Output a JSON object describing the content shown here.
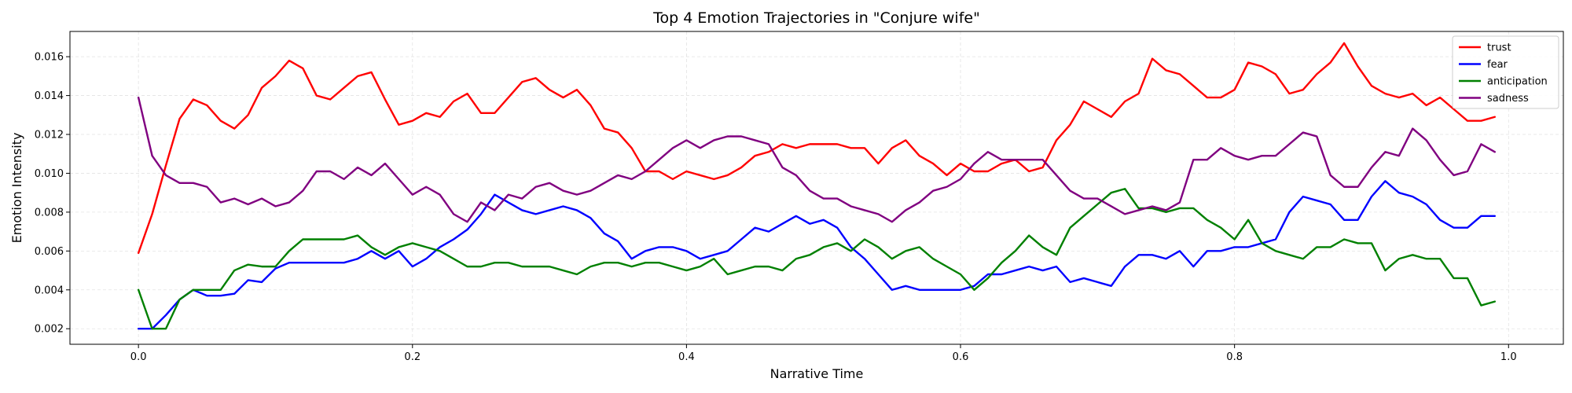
{
  "chart_data": {
    "type": "line",
    "title": "Top 4 Emotion Trajectories in \"Conjure wife\"",
    "xlabel": "Narrative Time",
    "ylabel": "Emotion Intensity",
    "xlim": [
      -0.05,
      1.04
    ],
    "ylim": [
      0.0012,
      0.0173
    ],
    "xticks": [
      0.0,
      0.2,
      0.4,
      0.6,
      0.8,
      1.0
    ],
    "xtick_labels": [
      "0.0",
      "0.2",
      "0.4",
      "0.6",
      "0.8",
      "1.0"
    ],
    "yticks": [
      0.002,
      0.004,
      0.006,
      0.008,
      0.01,
      0.012,
      0.014,
      0.016
    ],
    "ytick_labels": [
      "0.002",
      "0.004",
      "0.006",
      "0.008",
      "0.010",
      "0.012",
      "0.014",
      "0.016"
    ],
    "grid": true,
    "legend_position": "top-right",
    "x_start": 0.0,
    "x_step": 0.01,
    "series": [
      {
        "name": "trust",
        "color": "#ff0000",
        "values": [
          0.0059,
          0.0079,
          0.0104,
          0.0128,
          0.0138,
          0.0135,
          0.0127,
          0.0123,
          0.013,
          0.0144,
          0.015,
          0.0158,
          0.0154,
          0.014,
          0.0138,
          0.0144,
          0.015,
          0.0152,
          0.0138,
          0.0125,
          0.0127,
          0.0131,
          0.0129,
          0.0137,
          0.0141,
          0.0131,
          0.0131,
          0.0139,
          0.0147,
          0.0149,
          0.0143,
          0.0139,
          0.0143,
          0.0135,
          0.0123,
          0.0121,
          0.0113,
          0.0101,
          0.0101,
          0.0097,
          0.0101,
          0.0099,
          0.0097,
          0.0099,
          0.0103,
          0.0109,
          0.0111,
          0.0115,
          0.0113,
          0.0115,
          0.0115,
          0.0115,
          0.0113,
          0.0113,
          0.0105,
          0.0113,
          0.0117,
          0.0109,
          0.0105,
          0.0099,
          0.0105,
          0.0101,
          0.0101,
          0.0105,
          0.0107,
          0.0101,
          0.0103,
          0.0117,
          0.0125,
          0.0137,
          0.0133,
          0.0129,
          0.0137,
          0.0141,
          0.0159,
          0.0153,
          0.0151,
          0.0145,
          0.0139,
          0.0139,
          0.0143,
          0.0157,
          0.0155,
          0.0151,
          0.0141,
          0.0143,
          0.0151,
          0.0157,
          0.0167,
          0.0155,
          0.0145,
          0.0141,
          0.0139,
          0.0141,
          0.0135,
          0.0139,
          0.0133,
          0.0127,
          0.0127,
          0.0129
        ]
      },
      {
        "name": "fear",
        "color": "#0000ff",
        "values": [
          0.002,
          0.002,
          0.0027,
          0.0035,
          0.004,
          0.0037,
          0.0037,
          0.0038,
          0.0045,
          0.0044,
          0.0051,
          0.0054,
          0.0054,
          0.0054,
          0.0054,
          0.0054,
          0.0056,
          0.006,
          0.0056,
          0.006,
          0.0052,
          0.0056,
          0.0062,
          0.0066,
          0.0071,
          0.0079,
          0.0089,
          0.0085,
          0.0081,
          0.0079,
          0.0081,
          0.0083,
          0.0081,
          0.0077,
          0.0069,
          0.0065,
          0.0056,
          0.006,
          0.0062,
          0.0062,
          0.006,
          0.0056,
          0.0058,
          0.006,
          0.0066,
          0.0072,
          0.007,
          0.0074,
          0.0078,
          0.0074,
          0.0076,
          0.0072,
          0.0062,
          0.0056,
          0.0048,
          0.004,
          0.0042,
          0.004,
          0.004,
          0.004,
          0.004,
          0.0042,
          0.0048,
          0.0048,
          0.005,
          0.0052,
          0.005,
          0.0052,
          0.0044,
          0.0046,
          0.0044,
          0.0042,
          0.0052,
          0.0058,
          0.0058,
          0.0056,
          0.006,
          0.0052,
          0.006,
          0.006,
          0.0062,
          0.0062,
          0.0064,
          0.0066,
          0.008,
          0.0088,
          0.0086,
          0.0084,
          0.0076,
          0.0076,
          0.0088,
          0.0096,
          0.009,
          0.0088,
          0.0084,
          0.0076,
          0.0072,
          0.0072,
          0.0078,
          0.0078
        ]
      },
      {
        "name": "anticipation",
        "color": "#008000",
        "values": [
          0.004,
          0.002,
          0.002,
          0.0035,
          0.004,
          0.004,
          0.004,
          0.005,
          0.0053,
          0.0052,
          0.0052,
          0.006,
          0.0066,
          0.0066,
          0.0066,
          0.0066,
          0.0068,
          0.0062,
          0.0058,
          0.0062,
          0.0064,
          0.0062,
          0.006,
          0.0056,
          0.0052,
          0.0052,
          0.0054,
          0.0054,
          0.0052,
          0.0052,
          0.0052,
          0.005,
          0.0048,
          0.0052,
          0.0054,
          0.0054,
          0.0052,
          0.0054,
          0.0054,
          0.0052,
          0.005,
          0.0052,
          0.0056,
          0.0048,
          0.005,
          0.0052,
          0.0052,
          0.005,
          0.0056,
          0.0058,
          0.0062,
          0.0064,
          0.006,
          0.0066,
          0.0062,
          0.0056,
          0.006,
          0.0062,
          0.0056,
          0.0052,
          0.0048,
          0.004,
          0.0046,
          0.0054,
          0.006,
          0.0068,
          0.0062,
          0.0058,
          0.0072,
          0.0078,
          0.0084,
          0.009,
          0.0092,
          0.0082,
          0.0082,
          0.008,
          0.0082,
          0.0082,
          0.0076,
          0.0072,
          0.0066,
          0.0076,
          0.0064,
          0.006,
          0.0058,
          0.0056,
          0.0062,
          0.0062,
          0.0066,
          0.0064,
          0.0064,
          0.005,
          0.0056,
          0.0058,
          0.0056,
          0.0056,
          0.0046,
          0.0046,
          0.0032,
          0.0034
        ]
      },
      {
        "name": "sadness",
        "color": "#800080",
        "values": [
          0.0139,
          0.0109,
          0.0099,
          0.0095,
          0.0095,
          0.0093,
          0.0085,
          0.0087,
          0.0084,
          0.0087,
          0.0083,
          0.0085,
          0.0091,
          0.0101,
          0.0101,
          0.0097,
          0.0103,
          0.0099,
          0.0105,
          0.0097,
          0.0089,
          0.0093,
          0.0089,
          0.0079,
          0.0075,
          0.0085,
          0.0081,
          0.0089,
          0.0087,
          0.0093,
          0.0095,
          0.0091,
          0.0089,
          0.0091,
          0.0095,
          0.0099,
          0.0097,
          0.0101,
          0.0107,
          0.0113,
          0.0117,
          0.0113,
          0.0117,
          0.0119,
          0.0119,
          0.0117,
          0.0115,
          0.0103,
          0.0099,
          0.0091,
          0.0087,
          0.0087,
          0.0083,
          0.0081,
          0.0079,
          0.0075,
          0.0081,
          0.0085,
          0.0091,
          0.0093,
          0.0097,
          0.0105,
          0.0111,
          0.0107,
          0.0107,
          0.0107,
          0.0107,
          0.0099,
          0.0091,
          0.0087,
          0.0087,
          0.0083,
          0.0079,
          0.0081,
          0.0083,
          0.0081,
          0.0085,
          0.0107,
          0.0107,
          0.0113,
          0.0109,
          0.0107,
          0.0109,
          0.0109,
          0.0115,
          0.0121,
          0.0119,
          0.0099,
          0.0093,
          0.0093,
          0.0103,
          0.0111,
          0.0109,
          0.0123,
          0.0117,
          0.0107,
          0.0099,
          0.0101,
          0.0115,
          0.0111
        ]
      }
    ]
  }
}
